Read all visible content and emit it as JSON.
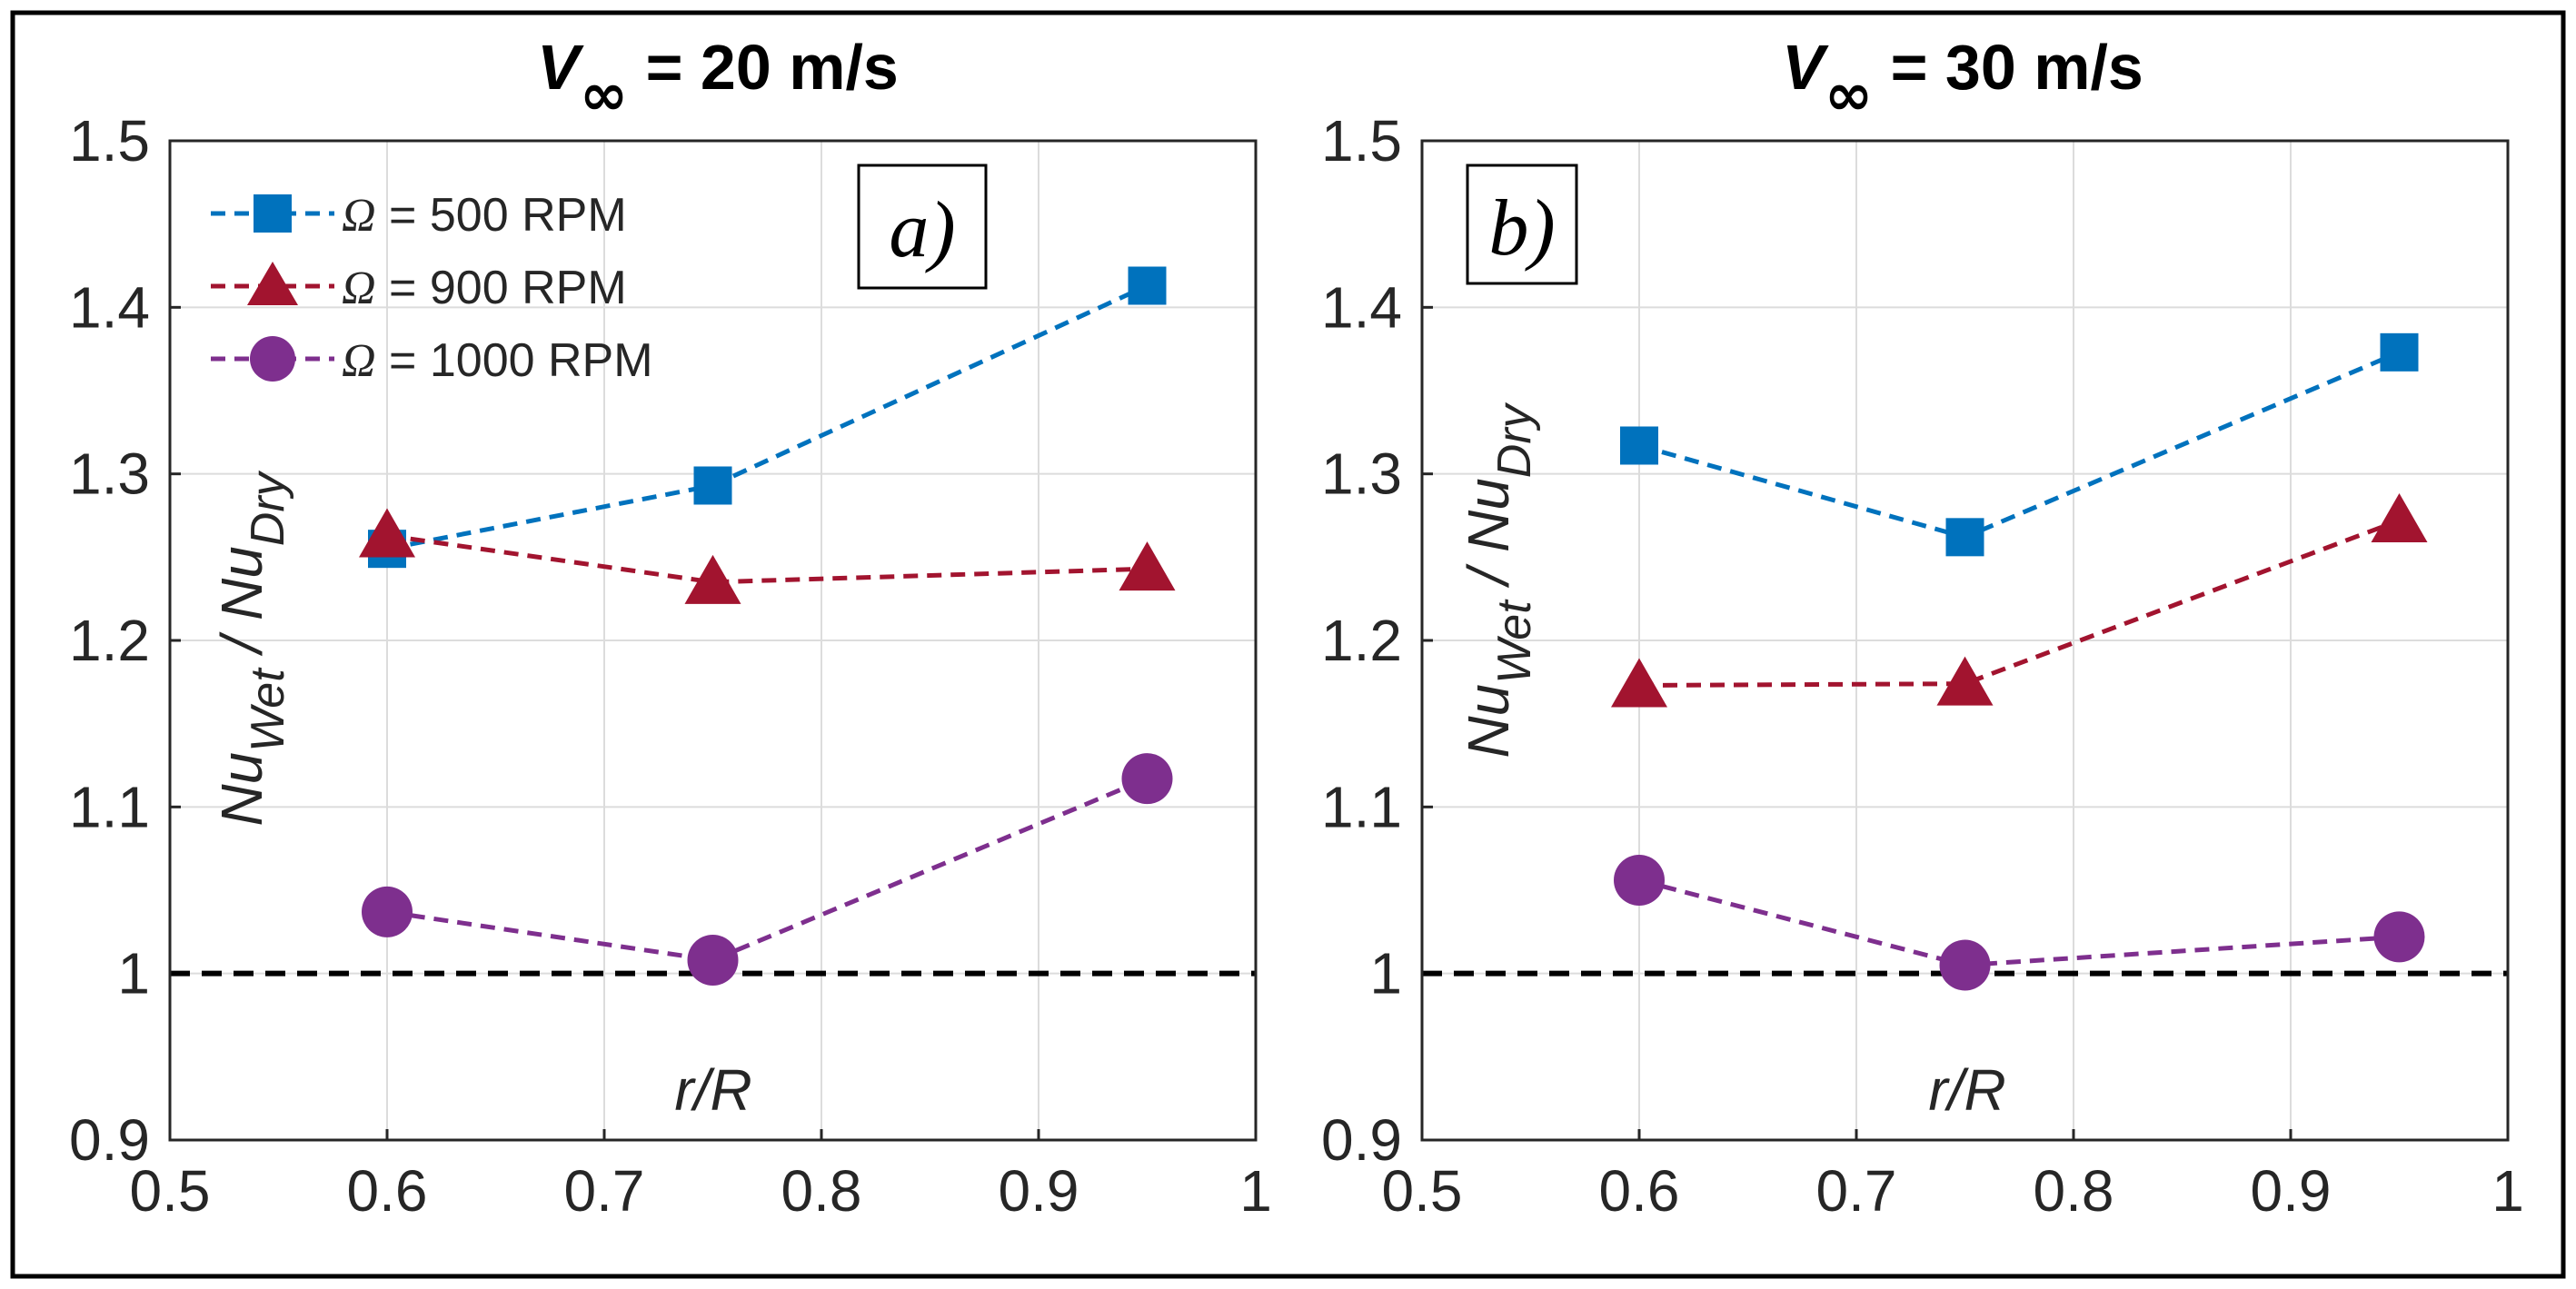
{
  "chart_data": [
    {
      "type": "line",
      "panel": "a",
      "panel_label": "a)",
      "title_symbol": "V",
      "title_subscript": "∞",
      "title_rest": " = 20 m/s",
      "xlabel": "r/R",
      "ylabel_main": "Nu",
      "ylabel_sub1": "Wet",
      "ylabel_mid": " / Nu",
      "ylabel_sub2": "Dry",
      "xlim": [
        0.5,
        1.0
      ],
      "ylim": [
        0.9,
        1.5
      ],
      "xticks": [
        "0.5",
        "0.6",
        "0.7",
        "0.8",
        "0.9",
        "1"
      ],
      "yticks": [
        "0.9",
        "1",
        "1.1",
        "1.2",
        "1.3",
        "1.4",
        "1.5"
      ],
      "reference_line": 1.0,
      "grid": true,
      "legend_position": "top-left",
      "x": [
        0.6,
        0.75,
        0.95
      ],
      "series": [
        {
          "name": "Ω = 500 RPM",
          "symbol": "Ω",
          "label_rest": " = 500 RPM",
          "color": "#0072BD",
          "marker": "square",
          "values": [
            1.255,
            1.293,
            1.413
          ]
        },
        {
          "name": "Ω = 900 RPM",
          "symbol": "Ω",
          "label_rest": " = 900 RPM",
          "color": "#A2142F",
          "marker": "triangle",
          "values": [
            1.263,
            1.235,
            1.243
          ]
        },
        {
          "name": "Ω = 1000 RPM",
          "symbol": "Ω",
          "label_rest": " = 1000 RPM",
          "color": "#7E2F8E",
          "marker": "circle",
          "values": [
            1.037,
            1.008,
            1.117
          ]
        }
      ]
    },
    {
      "type": "line",
      "panel": "b",
      "panel_label": "b)",
      "title_symbol": "V",
      "title_subscript": "∞",
      "title_rest": " = 30 m/s",
      "xlabel": "r/R",
      "ylabel_main": "Nu",
      "ylabel_sub1": "Wet",
      "ylabel_mid": " / Nu",
      "ylabel_sub2": "Dry",
      "xlim": [
        0.5,
        1.0
      ],
      "ylim": [
        0.9,
        1.5
      ],
      "xticks": [
        "0.5",
        "0.6",
        "0.7",
        "0.8",
        "0.9",
        "1"
      ],
      "yticks": [
        "0.9",
        "1",
        "1.1",
        "1.2",
        "1.3",
        "1.4",
        "1.5"
      ],
      "reference_line": 1.0,
      "grid": true,
      "x": [
        0.6,
        0.75,
        0.95
      ],
      "series": [
        {
          "name": "Ω = 500 RPM",
          "color": "#0072BD",
          "marker": "square",
          "values": [
            1.317,
            1.262,
            1.373
          ]
        },
        {
          "name": "Ω = 900 RPM",
          "color": "#A2142F",
          "marker": "triangle",
          "values": [
            1.173,
            1.174,
            1.272
          ]
        },
        {
          "name": "Ω = 1000 RPM",
          "color": "#7E2F8E",
          "marker": "circle",
          "values": [
            1.056,
            1.005,
            1.022
          ]
        }
      ]
    }
  ]
}
